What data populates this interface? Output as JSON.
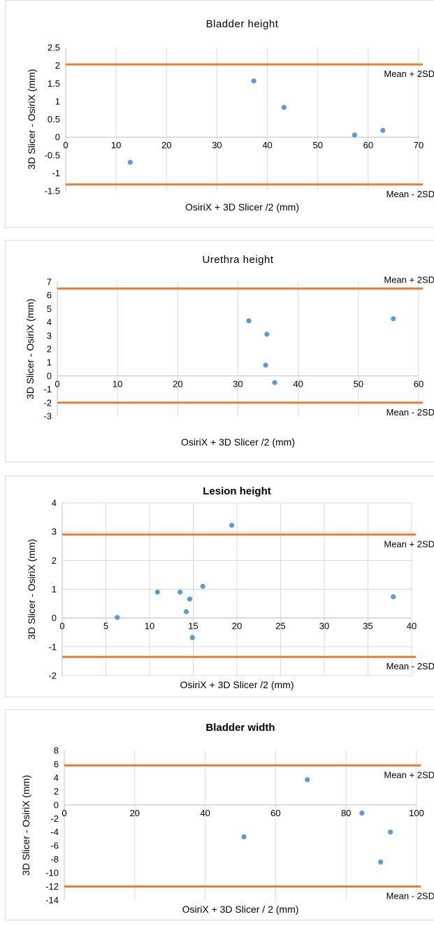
{
  "colors": {
    "point": "#5b9bd5",
    "limit_line": "#ed7d31",
    "grid": "#d9d9d9",
    "axis": "#bfbfbf"
  },
  "chart_data": [
    {
      "type": "scatter",
      "title": "Bladder height",
      "xlabel": "OsiriX + 3D Slicer /2 (mm)",
      "ylabel": "3D Slicer - OsiriX (mm)",
      "xlim": [
        0,
        70
      ],
      "ylim": [
        -1.5,
        2.5
      ],
      "x_ticks": [
        0,
        10,
        20,
        30,
        40,
        50,
        60,
        70
      ],
      "y_ticks": [
        2.5,
        2,
        1.5,
        1,
        0.5,
        0,
        -0.5,
        -1,
        -1.5
      ],
      "title_bold": false,
      "grid": "vertical",
      "points": [
        {
          "x": 12.8,
          "y": -0.7
        },
        {
          "x": 37.3,
          "y": 1.57
        },
        {
          "x": 43.3,
          "y": 0.83
        },
        {
          "x": 57.3,
          "y": 0.06
        },
        {
          "x": 62.9,
          "y": 0.19
        }
      ],
      "limits": [
        {
          "label": "Mean + 2SD",
          "y": 2.03,
          "label_pos": "below"
        },
        {
          "label": "Mean - 2SD",
          "y": -1.32,
          "label_pos": "below"
        }
      ]
    },
    {
      "type": "scatter",
      "title": "Urethra height",
      "xlabel": "OsiriX + 3D Slicer /2 (mm)",
      "ylabel": "3D Slicer - OsiriX (mm)",
      "xlim": [
        0,
        60
      ],
      "ylim": [
        -3,
        7
      ],
      "x_ticks": [
        0,
        10,
        20,
        30,
        40,
        50,
        60
      ],
      "y_ticks": [
        7,
        6,
        5,
        4,
        3,
        2,
        1,
        0,
        -1,
        -2,
        -3
      ],
      "title_bold": false,
      "grid": "vertical",
      "points": [
        {
          "x": 31.8,
          "y": 4.1
        },
        {
          "x": 34.8,
          "y": 3.1
        },
        {
          "x": 34.6,
          "y": 0.8
        },
        {
          "x": 36.1,
          "y": -0.5
        },
        {
          "x": 55.8,
          "y": 4.25
        }
      ],
      "limits": [
        {
          "label": "Mean + 2SD",
          "y": 6.5,
          "label_pos": "above"
        },
        {
          "label": "Mean - 2SD",
          "y": -2.0,
          "label_pos": "below"
        }
      ]
    },
    {
      "type": "scatter",
      "title": "Lesion height",
      "xlabel": "OsiriX + 3D Slicer /2 (mm)",
      "ylabel": "3D Slicer - OsiriX (mm)",
      "xlim": [
        0,
        40
      ],
      "ylim": [
        -2,
        4
      ],
      "x_ticks": [
        0,
        5,
        10,
        15,
        20,
        25,
        30,
        35,
        40
      ],
      "y_ticks": [
        4,
        3,
        2,
        1,
        0,
        -1,
        -2
      ],
      "title_bold": true,
      "grid": "both",
      "points": [
        {
          "x": 6.3,
          "y": 0.02
        },
        {
          "x": 10.9,
          "y": 0.9
        },
        {
          "x": 13.5,
          "y": 0.9
        },
        {
          "x": 14.2,
          "y": 0.22
        },
        {
          "x": 14.6,
          "y": 0.66
        },
        {
          "x": 14.9,
          "y": -0.68
        },
        {
          "x": 16.1,
          "y": 1.1
        },
        {
          "x": 19.4,
          "y": 3.22
        },
        {
          "x": 37.9,
          "y": 0.74
        }
      ],
      "limits": [
        {
          "label": "Mean + 2SD",
          "y": 2.9,
          "label_pos": "below"
        },
        {
          "label": "Mean - 2SD",
          "y": -1.35,
          "label_pos": "below"
        }
      ]
    },
    {
      "type": "scatter",
      "title": "Bladder width",
      "xlabel": "OsiriX + 3D Slicer / 2 (mm)",
      "ylabel": "3D Slicer - OsiriX (mm)",
      "xlim": [
        0,
        100
      ],
      "ylim": [
        -14,
        8
      ],
      "x_ticks": [
        0,
        20,
        40,
        60,
        80,
        100
      ],
      "y_ticks": [
        8,
        6,
        4,
        2,
        0,
        -2,
        -4,
        -6,
        -8,
        -10,
        -12,
        -14
      ],
      "title_bold": true,
      "grid": "vertical",
      "points": [
        {
          "x": 51,
          "y": -4.7
        },
        {
          "x": 69,
          "y": 3.7
        },
        {
          "x": 84.5,
          "y": -1.2
        },
        {
          "x": 89.8,
          "y": -8.4
        },
        {
          "x": 92.6,
          "y": -4.0
        }
      ],
      "limits": [
        {
          "label": "Mean + 2SD",
          "y": 5.8,
          "label_pos": "below"
        },
        {
          "label": "Mean - 2SD",
          "y": -12.0,
          "label_pos": "below"
        }
      ]
    }
  ]
}
